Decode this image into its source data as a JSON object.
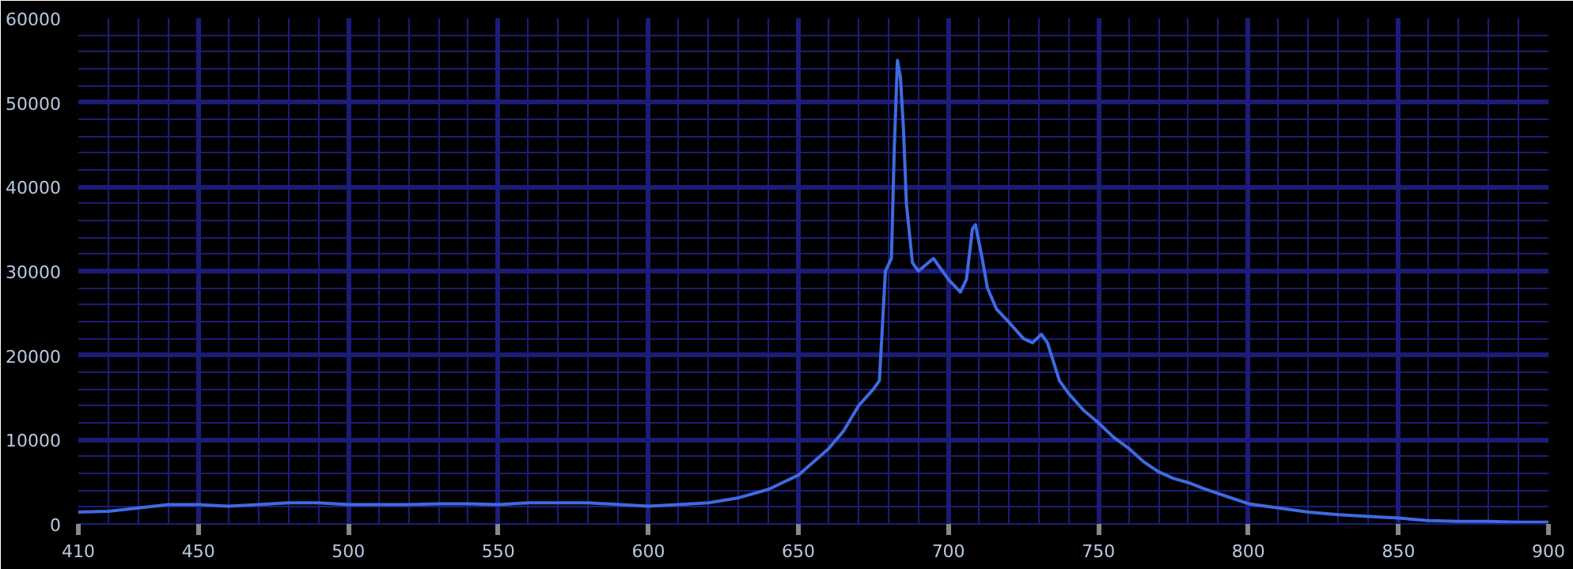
{
  "chart_data": {
    "type": "line",
    "xlim": [
      410,
      900
    ],
    "ylim": [
      0,
      60000
    ],
    "xticks": [
      410,
      450,
      500,
      550,
      600,
      650,
      700,
      750,
      800,
      850,
      900
    ],
    "yticks": [
      0,
      10000,
      20000,
      30000,
      40000,
      50000,
      60000
    ],
    "grid": true,
    "marker": "none",
    "line_style": "solid",
    "series": [
      {
        "color": "#3f6ae0",
        "x": [
          410,
          420,
          430,
          440,
          450,
          460,
          470,
          480,
          490,
          500,
          520,
          530,
          540,
          550,
          560,
          580,
          600,
          610,
          620,
          630,
          640,
          650,
          660,
          665,
          670,
          675,
          677,
          679,
          681,
          682,
          683,
          684,
          685,
          686,
          688,
          690,
          695,
          700,
          704,
          706,
          708,
          709,
          711,
          713,
          716,
          720,
          725,
          728,
          731,
          733,
          737,
          740,
          745,
          750,
          755,
          760,
          765,
          770,
          775,
          780,
          785,
          790,
          795,
          800,
          810,
          820,
          830,
          840,
          850,
          860,
          870,
          880,
          890,
          900
        ],
        "values": [
          1400,
          1500,
          1900,
          2300,
          2300,
          2100,
          2300,
          2500,
          2500,
          2300,
          2300,
          2400,
          2400,
          2300,
          2500,
          2500,
          2100,
          2300,
          2500,
          3100,
          4100,
          5800,
          8900,
          11000,
          14000,
          16000,
          17000,
          30000,
          31500,
          45000,
          55000,
          53000,
          47000,
          38000,
          31000,
          30000,
          31500,
          29000,
          27500,
          29000,
          35000,
          35500,
          32000,
          28000,
          25500,
          24000,
          22000,
          21500,
          22500,
          21500,
          17000,
          15500,
          13500,
          12000,
          10300,
          9000,
          7400,
          6200,
          5400,
          4900,
          4200,
          3600,
          3000,
          2400,
          1900,
          1400,
          1100,
          900,
          700,
          400,
          300,
          300,
          200,
          200
        ]
      }
    ]
  }
}
